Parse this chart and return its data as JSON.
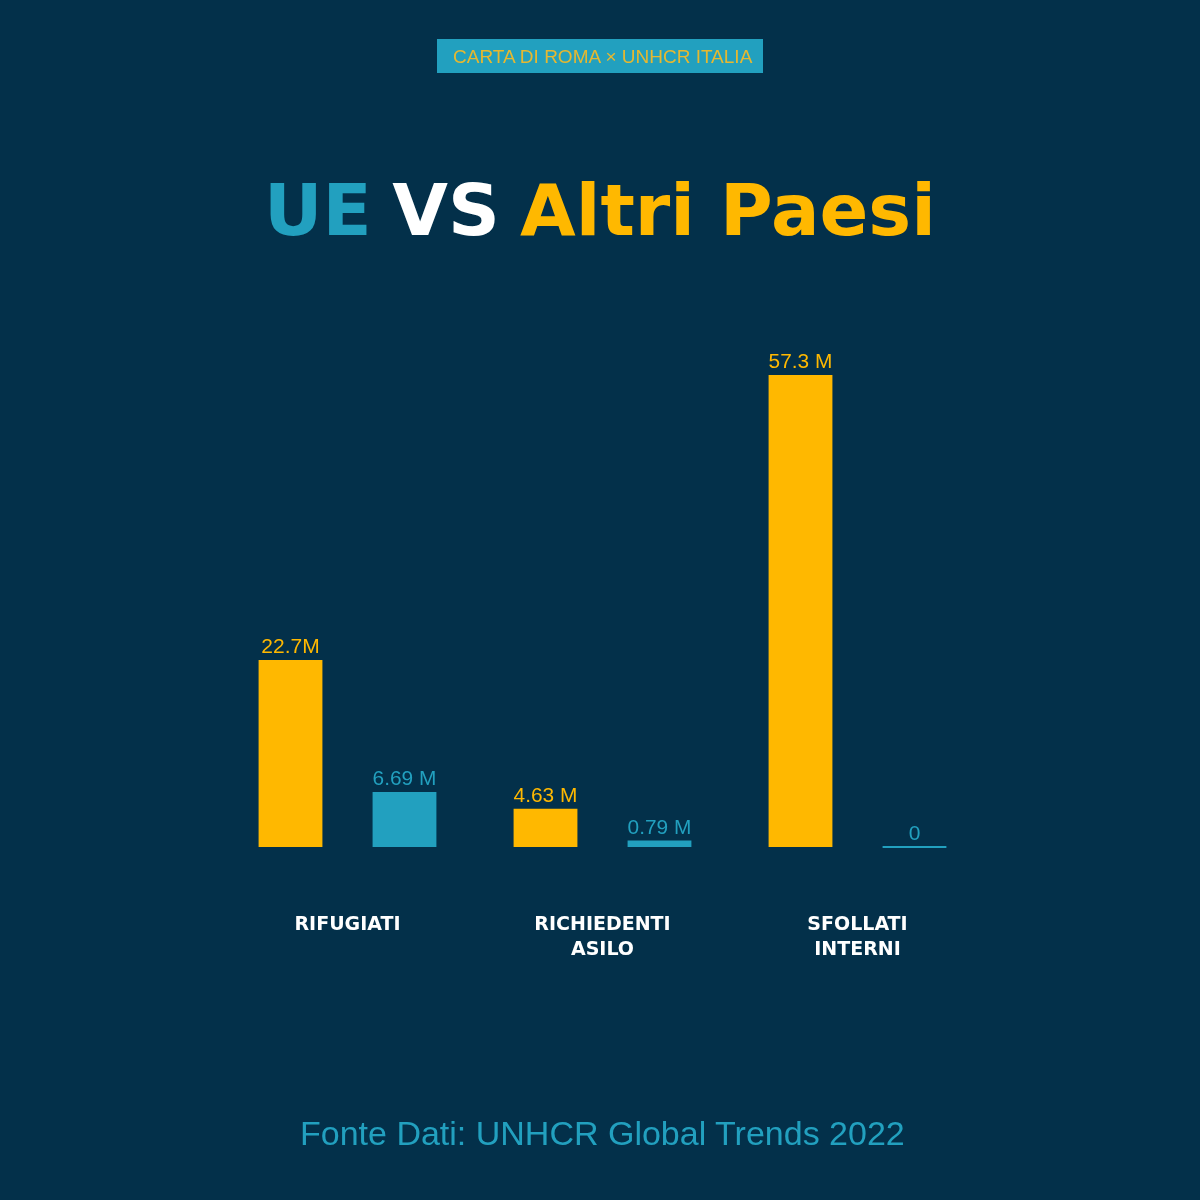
{
  "chart_data": {
    "type": "bar",
    "title": "VS",
    "categories": [
      "RIFUGIATI",
      "RICHIEDENTI\nASILO",
      "SFOLLATI\nINTERNI"
    ],
    "series": [
      {
        "name": "Altri Paesi",
        "color": "#ffb800",
        "values": [
          22.7,
          4.63,
          57.3
        ],
        "value_labels": [
          "22.7M",
          "4.63 M",
          "57.3 M"
        ]
      },
      {
        "name": "UE",
        "color": "#22a0bf",
        "values": [
          6.69,
          0.79,
          0
        ],
        "value_labels": [
          "6.69 M",
          "0.79 M",
          "0"
        ]
      }
    ],
    "tick_labels": "x",
    "annotations": [
      "CARTA DI ROMA × UNHCR ITALIA",
      "Fonte Dati: UNHCR Global Trends 2022"
    ]
  }
}
